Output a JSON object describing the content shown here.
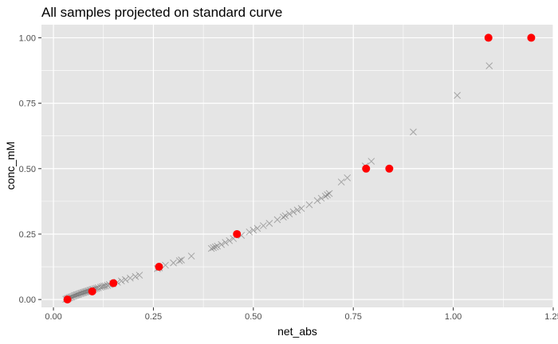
{
  "chart_data": {
    "type": "scatter",
    "title": "All samples projected on standard curve",
    "xlabel": "net_abs",
    "ylabel": "conc_mM",
    "xlim": [
      -0.03,
      1.25
    ],
    "ylim": [
      -0.03,
      1.05
    ],
    "x_ticks": [
      0.0,
      0.25,
      0.5,
      0.75,
      1.0,
      1.25
    ],
    "x_tick_labels": [
      "0.00",
      "0.25",
      "0.50",
      "0.75",
      "1.00",
      "1.25"
    ],
    "y_ticks": [
      0.0,
      0.25,
      0.5,
      0.75,
      1.0
    ],
    "y_tick_labels": [
      "0.00",
      "0.25",
      "0.50",
      "0.75",
      "1.00"
    ],
    "grid": true,
    "colors": {
      "panel": "#e5e5e5",
      "grid": "#ffffff",
      "standards": "#ff0000",
      "samples": "#555555"
    },
    "series": [
      {
        "marker": "x",
        "color": "#555555",
        "points": [
          [
            0.031,
            0.001
          ],
          [
            0.034,
            0.003
          ],
          [
            0.037,
            0.005
          ],
          [
            0.04,
            0.007
          ],
          [
            0.043,
            0.009
          ],
          [
            0.046,
            0.01
          ],
          [
            0.049,
            0.012
          ],
          [
            0.052,
            0.014
          ],
          [
            0.055,
            0.016
          ],
          [
            0.058,
            0.018
          ],
          [
            0.061,
            0.019
          ],
          [
            0.064,
            0.021
          ],
          [
            0.067,
            0.023
          ],
          [
            0.07,
            0.024
          ],
          [
            0.073,
            0.026
          ],
          [
            0.076,
            0.027
          ],
          [
            0.079,
            0.029
          ],
          [
            0.082,
            0.03
          ],
          [
            0.085,
            0.032
          ],
          [
            0.088,
            0.033
          ],
          [
            0.091,
            0.035
          ],
          [
            0.094,
            0.036
          ],
          [
            0.097,
            0.038
          ],
          [
            0.1,
            0.039
          ],
          [
            0.104,
            0.041
          ],
          [
            0.108,
            0.043
          ],
          [
            0.112,
            0.045
          ],
          [
            0.118,
            0.047
          ],
          [
            0.122,
            0.049
          ],
          [
            0.126,
            0.051
          ],
          [
            0.13,
            0.052
          ],
          [
            0.135,
            0.054
          ],
          [
            0.14,
            0.057
          ],
          [
            0.148,
            0.06
          ],
          [
            0.16,
            0.066
          ],
          [
            0.17,
            0.071
          ],
          [
            0.18,
            0.076
          ],
          [
            0.192,
            0.082
          ],
          [
            0.205,
            0.088
          ],
          [
            0.215,
            0.093
          ],
          [
            0.26,
            0.118
          ],
          [
            0.265,
            0.121
          ],
          [
            0.28,
            0.131
          ],
          [
            0.3,
            0.14
          ],
          [
            0.315,
            0.148
          ],
          [
            0.32,
            0.151
          ],
          [
            0.345,
            0.166
          ],
          [
            0.395,
            0.195
          ],
          [
            0.4,
            0.198
          ],
          [
            0.405,
            0.201
          ],
          [
            0.41,
            0.204
          ],
          [
            0.42,
            0.21
          ],
          [
            0.43,
            0.218
          ],
          [
            0.44,
            0.225
          ],
          [
            0.45,
            0.233
          ],
          [
            0.47,
            0.245
          ],
          [
            0.49,
            0.258
          ],
          [
            0.5,
            0.265
          ],
          [
            0.51,
            0.272
          ],
          [
            0.525,
            0.282
          ],
          [
            0.54,
            0.291
          ],
          [
            0.56,
            0.305
          ],
          [
            0.575,
            0.315
          ],
          [
            0.58,
            0.32
          ],
          [
            0.59,
            0.327
          ],
          [
            0.6,
            0.335
          ],
          [
            0.61,
            0.342
          ],
          [
            0.62,
            0.348
          ],
          [
            0.64,
            0.362
          ],
          [
            0.66,
            0.378
          ],
          [
            0.67,
            0.387
          ],
          [
            0.68,
            0.395
          ],
          [
            0.685,
            0.4
          ],
          [
            0.69,
            0.405
          ],
          [
            0.72,
            0.449
          ],
          [
            0.735,
            0.465
          ],
          [
            0.78,
            0.51
          ],
          [
            0.795,
            0.528
          ],
          [
            0.9,
            0.64
          ],
          [
            1.01,
            0.78
          ],
          [
            1.09,
            0.893
          ]
        ]
      },
      {
        "marker": "circle",
        "color": "#ff0000",
        "points": [
          [
            0.035,
            0.0
          ],
          [
            0.097,
            0.031
          ],
          [
            0.15,
            0.0625
          ],
          [
            0.264,
            0.125
          ],
          [
            0.459,
            0.25
          ],
          [
            0.782,
            0.5
          ],
          [
            0.84,
            0.5
          ],
          [
            1.088,
            1.0
          ],
          [
            1.195,
            1.0
          ]
        ]
      }
    ]
  }
}
